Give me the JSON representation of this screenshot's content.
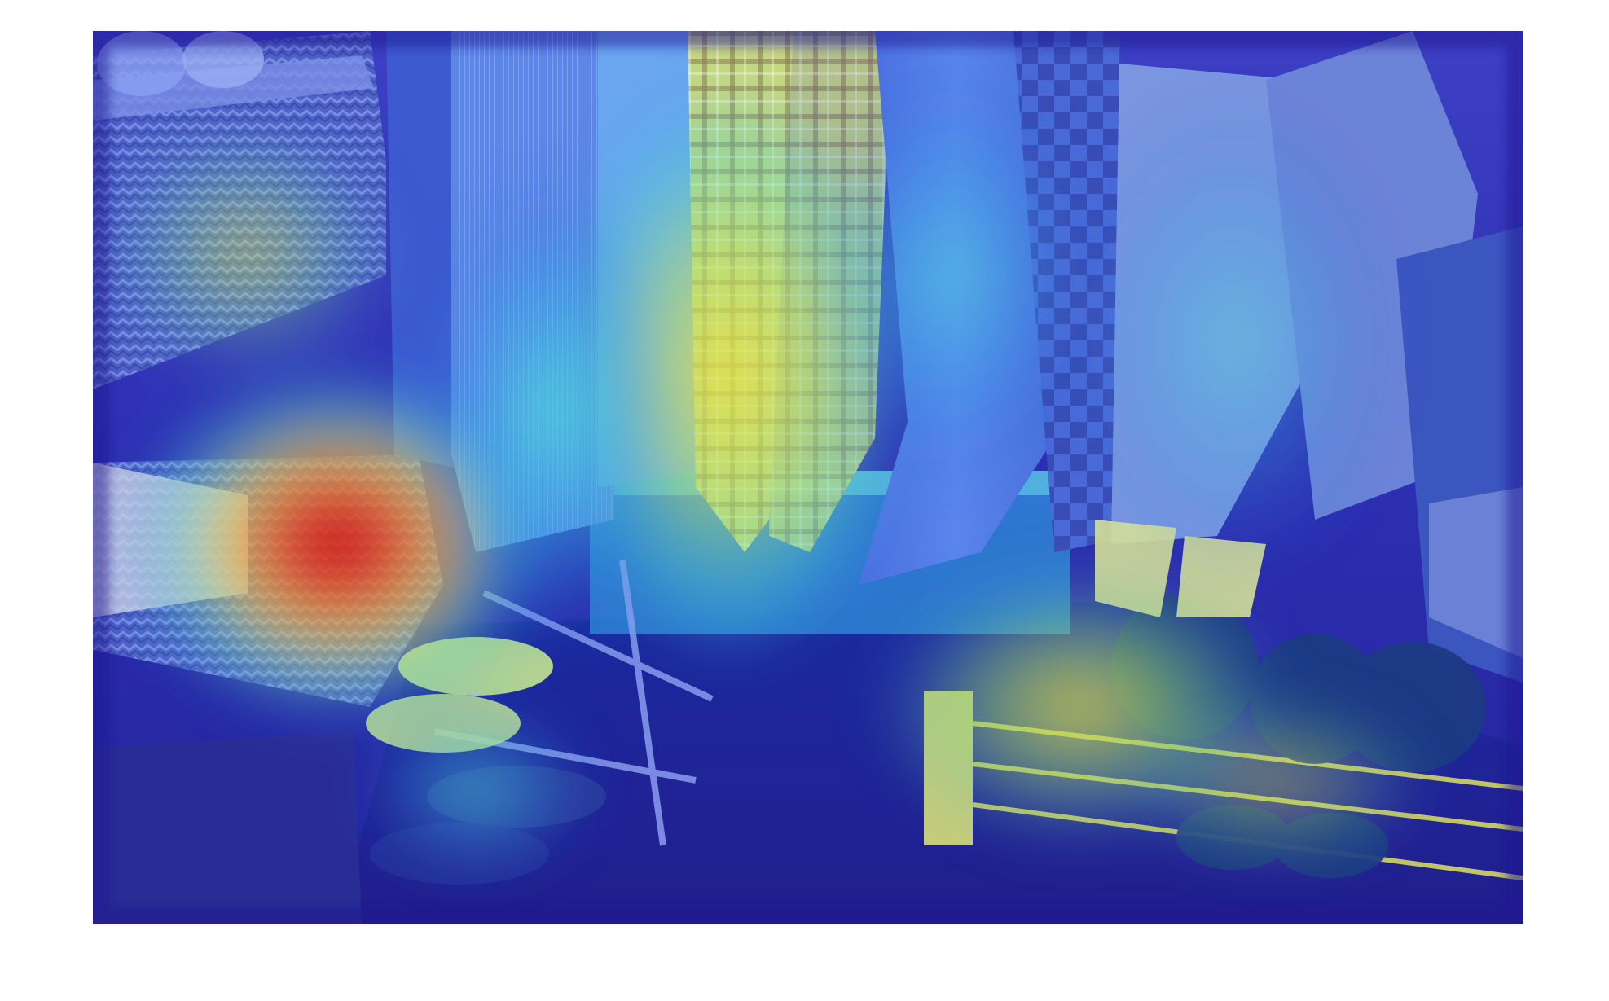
{
  "figure": {
    "kind": "heatmap-overlay-photo",
    "subject": "closet-with-shirts-baskets-and-shoe-racks",
    "colormap": "jet",
    "colors": {
      "low": "#1a1aa8",
      "mid_low": "#1f7fe0",
      "mid": "#3fd8d0",
      "mid_high": "#e8e840",
      "high": "#e01818"
    }
  }
}
